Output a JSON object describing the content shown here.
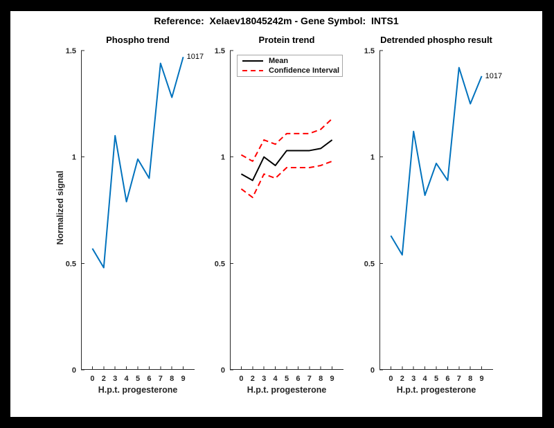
{
  "figure": {
    "title": "Reference:  Xelaev18045242m - Gene Symbol:  INTS1",
    "background_color": "#ffffff",
    "frame_color": "#000000",
    "axis_color": "#262626"
  },
  "chart_data": [
    {
      "type": "line",
      "title": "Phospho trend",
      "xlabel": "H.p.t. progesterone",
      "ylabel": "Normalized signal",
      "x_tick_labels": [
        "0",
        "2",
        "3",
        "4",
        "5",
        "6",
        "7",
        "8",
        "9"
      ],
      "yticks": [
        0,
        0.5,
        1,
        1.5
      ],
      "ylim": [
        0,
        1.5
      ],
      "grid": false,
      "endpoint_label": "1017",
      "series": [
        {
          "name": "1017",
          "color": "#0072BD",
          "dash": "solid",
          "values": [
            0.57,
            0.48,
            1.1,
            0.79,
            0.99,
            0.9,
            1.44,
            1.28,
            1.47
          ]
        }
      ]
    },
    {
      "type": "line",
      "title": "Protein trend",
      "xlabel": "H.p.t. progesterone",
      "ylabel": "",
      "x_tick_labels": [
        "0",
        "2",
        "3",
        "4",
        "5",
        "6",
        "7",
        "8",
        "9"
      ],
      "yticks": [
        0,
        0.5,
        1,
        1.5
      ],
      "ylim": [
        0,
        1.5
      ],
      "grid": false,
      "series": [
        {
          "name": "Mean",
          "color": "#000000",
          "dash": "solid",
          "values": [
            0.92,
            0.89,
            1.0,
            0.96,
            1.03,
            1.03,
            1.03,
            1.04,
            1.08
          ]
        },
        {
          "name": "Confidence Interval upper",
          "color": "#FF0000",
          "dash": "dashed",
          "values": [
            1.01,
            0.98,
            1.08,
            1.06,
            1.11,
            1.11,
            1.11,
            1.13,
            1.18
          ]
        },
        {
          "name": "Confidence Interval lower",
          "color": "#FF0000",
          "dash": "dashed",
          "values": [
            0.85,
            0.81,
            0.92,
            0.9,
            0.95,
            0.95,
            0.95,
            0.96,
            0.98
          ]
        }
      ],
      "legend": {
        "position": "northwest",
        "entries": [
          {
            "label": "Mean",
            "color": "#000000",
            "dash": "solid"
          },
          {
            "label": "Confidence Interval",
            "color": "#FF0000",
            "dash": "dashed"
          }
        ]
      }
    },
    {
      "type": "line",
      "title": "Detrended phospho result",
      "xlabel": "H.p.t. progesterone",
      "ylabel": "",
      "x_tick_labels": [
        "0",
        "2",
        "3",
        "4",
        "5",
        "6",
        "7",
        "8",
        "9"
      ],
      "yticks": [
        0,
        0.5,
        1,
        1.5
      ],
      "ylim": [
        0,
        1.5
      ],
      "grid": false,
      "endpoint_label": "1017",
      "series": [
        {
          "name": "1017",
          "color": "#0072BD",
          "dash": "solid",
          "values": [
            0.63,
            0.54,
            1.12,
            0.82,
            0.97,
            0.89,
            1.42,
            1.25,
            1.38
          ]
        }
      ]
    }
  ]
}
